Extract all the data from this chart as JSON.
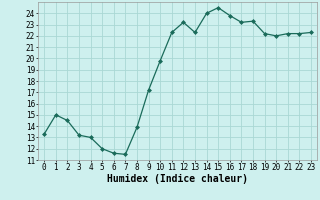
{
  "x": [
    0,
    1,
    2,
    3,
    4,
    5,
    6,
    7,
    8,
    9,
    10,
    11,
    12,
    13,
    14,
    15,
    16,
    17,
    18,
    19,
    20,
    21,
    22,
    23
  ],
  "y": [
    13.3,
    15.0,
    14.5,
    13.2,
    13.0,
    12.0,
    11.6,
    11.5,
    13.9,
    17.2,
    19.8,
    22.3,
    23.2,
    22.3,
    24.0,
    24.5,
    23.8,
    23.2,
    23.3,
    22.2,
    22.0,
    22.2,
    22.2,
    22.3
  ],
  "line_color": "#1a6b5a",
  "marker": "D",
  "marker_size": 2.0,
  "bg_color": "#cef0ee",
  "grid_color": "#aad8d4",
  "xlabel": "Humidex (Indice chaleur)",
  "ylim": [
    11,
    25
  ],
  "xlim": [
    -0.5,
    23.5
  ],
  "yticks": [
    11,
    12,
    13,
    14,
    15,
    16,
    17,
    18,
    19,
    20,
    21,
    22,
    23,
    24
  ],
  "xticks": [
    0,
    1,
    2,
    3,
    4,
    5,
    6,
    7,
    8,
    9,
    10,
    11,
    12,
    13,
    14,
    15,
    16,
    17,
    18,
    19,
    20,
    21,
    22,
    23
  ],
  "tick_fontsize": 5.5,
  "xlabel_fontsize": 7.0,
  "linewidth": 0.9
}
